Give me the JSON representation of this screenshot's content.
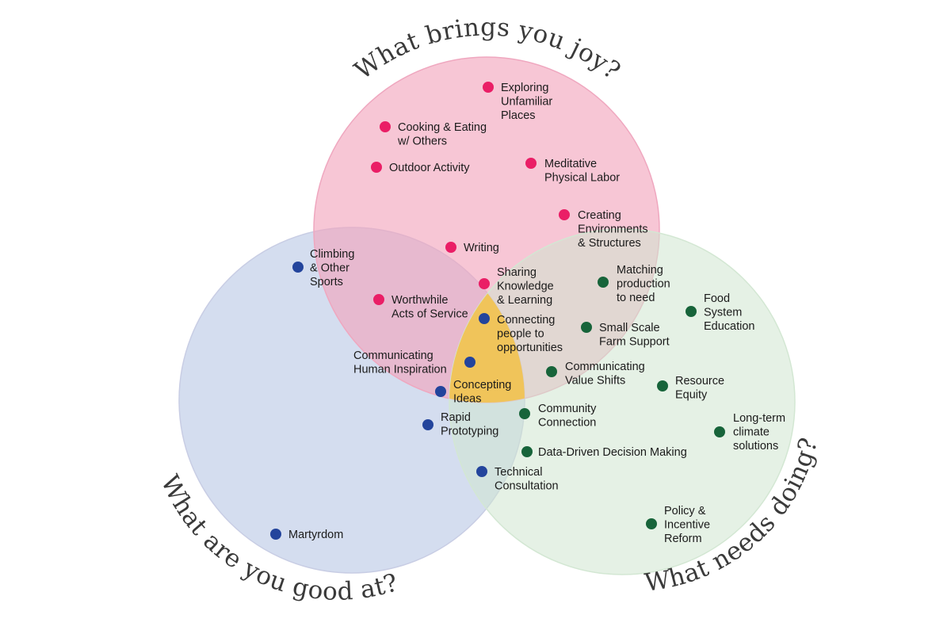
{
  "colors": {
    "joy": "#ea1e66",
    "good": "#23449c",
    "needs": "#17643a",
    "joy_fill": "#f7bccd",
    "good_fill": "#d2dbee",
    "needs_fill": "#dfefdf",
    "center_fill": "#f0c45a",
    "title": "#3a3a3a"
  },
  "circles": [
    {
      "id": "joy",
      "title": "What brings you joy?"
    },
    {
      "id": "good",
      "title": "What are you good at?"
    },
    {
      "id": "needs",
      "title": "What needs doing?"
    }
  ],
  "items": [
    {
      "id": "exploring",
      "group": "joy",
      "lines": [
        "Exploring",
        "Unfamiliar",
        "Places"
      ]
    },
    {
      "id": "cooking",
      "group": "joy",
      "lines": [
        "Cooking & Eating",
        "w/ Others"
      ]
    },
    {
      "id": "outdoor",
      "group": "joy",
      "lines": [
        "Outdoor Activity"
      ]
    },
    {
      "id": "meditative",
      "group": "joy",
      "lines": [
        "Meditative",
        "Physical Labor"
      ]
    },
    {
      "id": "creating",
      "group": "joy",
      "lines": [
        "Creating",
        "Environments",
        "& Structures"
      ]
    },
    {
      "id": "writing",
      "group": "joy",
      "lines": [
        "Writing"
      ]
    },
    {
      "id": "sharing",
      "group": "joy",
      "lines": [
        "Sharing",
        "Knowledge",
        "& Learning"
      ]
    },
    {
      "id": "worthwhile",
      "group": "joy",
      "lines": [
        "Worthwhile",
        "Acts of Service"
      ]
    },
    {
      "id": "climbing",
      "group": "good",
      "lines": [
        "Climbing",
        "& Other",
        "Sports"
      ]
    },
    {
      "id": "connecting",
      "group": "good",
      "lines": [
        "Connecting",
        "people to",
        "opportunities"
      ]
    },
    {
      "id": "communicating-inspiration",
      "group": "good",
      "lines": [
        "Communicating",
        "Human Inspiration"
      ]
    },
    {
      "id": "concepting",
      "group": "good",
      "lines": [
        "Concepting",
        "Ideas"
      ]
    },
    {
      "id": "rapid",
      "group": "good",
      "lines": [
        "Rapid",
        "Prototyping"
      ]
    },
    {
      "id": "technical",
      "group": "good",
      "lines": [
        "Technical",
        "Consultation"
      ]
    },
    {
      "id": "martyrdom",
      "group": "good",
      "lines": [
        "Martyrdom"
      ]
    },
    {
      "id": "matching",
      "group": "needs",
      "lines": [
        "Matching",
        "production",
        "to need"
      ]
    },
    {
      "id": "food",
      "group": "needs",
      "lines": [
        "Food",
        "System",
        "Education"
      ]
    },
    {
      "id": "small-scale",
      "group": "needs",
      "lines": [
        "Small Scale",
        "Farm Support"
      ]
    },
    {
      "id": "value-shifts",
      "group": "needs",
      "lines": [
        "Communicating",
        "Value Shifts"
      ]
    },
    {
      "id": "resource",
      "group": "needs",
      "lines": [
        "Resource",
        "Equity"
      ]
    },
    {
      "id": "community",
      "group": "needs",
      "lines": [
        "Community",
        "Connection"
      ]
    },
    {
      "id": "long-term",
      "group": "needs",
      "lines": [
        "Long-term",
        "climate",
        "solutions"
      ]
    },
    {
      "id": "data-driven",
      "group": "needs",
      "lines": [
        "Data-Driven Decision Making"
      ]
    },
    {
      "id": "policy",
      "group": "needs",
      "lines": [
        "Policy &",
        "Incentive",
        "Reform"
      ]
    }
  ]
}
